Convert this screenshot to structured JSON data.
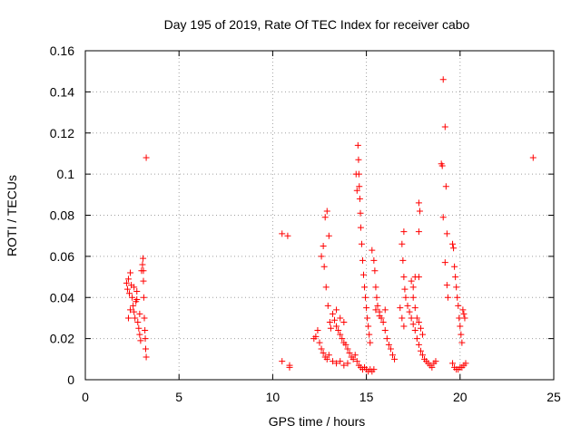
{
  "chart_data": {
    "type": "scatter",
    "title": "Day 195 of 2019, Rate Of TEC Index for receiver cabo",
    "xlabel": "GPS time / hours",
    "ylabel": "ROTI / TECUs",
    "xlim": [
      0,
      25
    ],
    "ylim": [
      0,
      0.16
    ],
    "grid": true,
    "marker": "+",
    "color": "#ff0000",
    "xticks": [
      {
        "value": 0,
        "label": "0"
      },
      {
        "value": 5,
        "label": "5"
      },
      {
        "value": 10,
        "label": "10"
      },
      {
        "value": 15,
        "label": "15"
      },
      {
        "value": 20,
        "label": "20"
      },
      {
        "value": 25,
        "label": "25"
      }
    ],
    "yticks": [
      {
        "value": 0,
        "label": "0"
      },
      {
        "value": 0.02,
        "label": "0.02"
      },
      {
        "value": 0.04,
        "label": "0.04"
      },
      {
        "value": 0.06,
        "label": "0.06"
      },
      {
        "value": 0.08,
        "label": "0.08"
      },
      {
        "value": 0.1,
        "label": "0.1"
      },
      {
        "value": 0.12,
        "label": "0.12"
      },
      {
        "value": 0.14,
        "label": "0.14"
      },
      {
        "value": 0.16,
        "label": "0.16"
      }
    ],
    "series": [
      {
        "name": "ROTI",
        "points": [
          [
            2.2,
            0.047
          ],
          [
            2.25,
            0.044
          ],
          [
            2.3,
            0.049
          ],
          [
            2.35,
            0.042
          ],
          [
            2.4,
            0.052
          ],
          [
            2.45,
            0.046
          ],
          [
            2.5,
            0.04
          ],
          [
            2.55,
            0.036
          ],
          [
            2.6,
            0.033
          ],
          [
            2.65,
            0.03
          ],
          [
            2.7,
            0.038
          ],
          [
            2.75,
            0.043
          ],
          [
            2.8,
            0.028
          ],
          [
            2.85,
            0.025
          ],
          [
            2.9,
            0.022
          ],
          [
            2.95,
            0.019
          ],
          [
            3.0,
            0.053
          ],
          [
            3.05,
            0.056
          ],
          [
            3.08,
            0.059
          ],
          [
            3.1,
            0.048
          ],
          [
            3.12,
            0.04
          ],
          [
            3.15,
            0.03
          ],
          [
            3.18,
            0.024
          ],
          [
            3.2,
            0.02
          ],
          [
            3.22,
            0.015
          ],
          [
            3.25,
            0.011
          ],
          [
            3.25,
            0.108
          ],
          [
            2.3,
            0.03
          ],
          [
            2.4,
            0.034
          ],
          [
            2.6,
            0.045
          ],
          [
            2.75,
            0.039
          ],
          [
            2.9,
            0.032
          ],
          [
            3.1,
            0.053
          ],
          [
            10.5,
            0.071
          ],
          [
            10.8,
            0.07
          ],
          [
            10.5,
            0.009
          ],
          [
            10.9,
            0.006
          ],
          [
            10.9,
            0.007
          ],
          [
            12.2,
            0.02
          ],
          [
            12.3,
            0.021
          ],
          [
            12.4,
            0.024
          ],
          [
            12.5,
            0.018
          ],
          [
            12.6,
            0.015
          ],
          [
            12.7,
            0.013
          ],
          [
            12.8,
            0.011
          ],
          [
            12.9,
            0.01
          ],
          [
            13.0,
            0.012
          ],
          [
            12.6,
            0.06
          ],
          [
            12.7,
            0.065
          ],
          [
            12.8,
            0.079
          ],
          [
            12.9,
            0.082
          ],
          [
            13.0,
            0.07
          ],
          [
            12.75,
            0.055
          ],
          [
            12.85,
            0.045
          ],
          [
            12.95,
            0.036
          ],
          [
            13.05,
            0.028
          ],
          [
            13.1,
            0.025
          ],
          [
            13.2,
            0.032
          ],
          [
            13.3,
            0.029
          ],
          [
            13.4,
            0.026
          ],
          [
            13.5,
            0.024
          ],
          [
            13.6,
            0.022
          ],
          [
            13.7,
            0.02
          ],
          [
            13.8,
            0.018
          ],
          [
            13.9,
            0.017
          ],
          [
            13.4,
            0.034
          ],
          [
            13.6,
            0.03
          ],
          [
            13.8,
            0.028
          ],
          [
            13.2,
            0.009
          ],
          [
            13.4,
            0.008
          ],
          [
            13.6,
            0.009
          ],
          [
            13.8,
            0.007
          ],
          [
            14.0,
            0.008
          ],
          [
            14.0,
            0.015
          ],
          [
            14.1,
            0.013
          ],
          [
            14.2,
            0.011
          ],
          [
            14.3,
            0.01
          ],
          [
            14.4,
            0.012
          ],
          [
            14.5,
            0.009
          ],
          [
            14.6,
            0.007
          ],
          [
            14.7,
            0.006
          ],
          [
            14.8,
            0.005
          ],
          [
            14.9,
            0.006
          ],
          [
            15.0,
            0.005
          ],
          [
            15.1,
            0.004
          ],
          [
            15.2,
            0.005
          ],
          [
            15.3,
            0.004
          ],
          [
            15.4,
            0.005
          ],
          [
            14.55,
            0.114
          ],
          [
            14.58,
            0.107
          ],
          [
            14.6,
            0.1
          ],
          [
            14.62,
            0.094
          ],
          [
            14.65,
            0.088
          ],
          [
            14.68,
            0.081
          ],
          [
            14.7,
            0.074
          ],
          [
            14.75,
            0.066
          ],
          [
            14.8,
            0.058
          ],
          [
            14.85,
            0.051
          ],
          [
            14.9,
            0.045
          ],
          [
            14.95,
            0.04
          ],
          [
            15.0,
            0.035
          ],
          [
            15.05,
            0.03
          ],
          [
            15.1,
            0.026
          ],
          [
            15.15,
            0.022
          ],
          [
            15.2,
            0.018
          ],
          [
            14.45,
            0.1
          ],
          [
            14.5,
            0.092
          ],
          [
            15.3,
            0.063
          ],
          [
            15.4,
            0.058
          ],
          [
            15.45,
            0.053
          ],
          [
            15.5,
            0.045
          ],
          [
            15.55,
            0.04
          ],
          [
            15.6,
            0.036
          ],
          [
            15.7,
            0.033
          ],
          [
            15.8,
            0.03
          ],
          [
            15.9,
            0.028
          ],
          [
            16.0,
            0.024
          ],
          [
            16.1,
            0.02
          ],
          [
            16.2,
            0.017
          ],
          [
            16.3,
            0.015
          ],
          [
            16.4,
            0.012
          ],
          [
            16.5,
            0.01
          ],
          [
            15.5,
            0.034
          ],
          [
            15.7,
            0.031
          ],
          [
            16.0,
            0.034
          ],
          [
            16.9,
            0.066
          ],
          [
            17.0,
            0.072
          ],
          [
            16.95,
            0.058
          ],
          [
            17.0,
            0.05
          ],
          [
            17.05,
            0.044
          ],
          [
            17.1,
            0.04
          ],
          [
            17.2,
            0.036
          ],
          [
            17.3,
            0.033
          ],
          [
            17.4,
            0.03
          ],
          [
            17.5,
            0.027
          ],
          [
            17.6,
            0.024
          ],
          [
            17.7,
            0.02
          ],
          [
            17.8,
            0.017
          ],
          [
            17.9,
            0.014
          ],
          [
            18.0,
            0.012
          ],
          [
            18.1,
            0.01
          ],
          [
            18.2,
            0.009
          ],
          [
            18.3,
            0.008
          ],
          [
            18.4,
            0.007
          ],
          [
            18.5,
            0.006
          ],
          [
            18.6,
            0.008
          ],
          [
            18.7,
            0.009
          ],
          [
            17.4,
            0.048
          ],
          [
            17.5,
            0.04
          ],
          [
            17.6,
            0.035
          ],
          [
            17.7,
            0.03
          ],
          [
            17.8,
            0.028
          ],
          [
            17.9,
            0.025
          ],
          [
            18.0,
            0.022
          ],
          [
            17.5,
            0.045
          ],
          [
            17.6,
            0.05
          ],
          [
            17.8,
            0.086
          ],
          [
            17.85,
            0.082
          ],
          [
            17.8,
            0.072
          ],
          [
            17.8,
            0.05
          ],
          [
            16.8,
            0.035
          ],
          [
            16.9,
            0.03
          ],
          [
            17.0,
            0.026
          ],
          [
            19.1,
            0.146
          ],
          [
            19.2,
            0.123
          ],
          [
            19.25,
            0.094
          ],
          [
            19.0,
            0.105
          ],
          [
            19.05,
            0.104
          ],
          [
            19.1,
            0.079
          ],
          [
            19.3,
            0.071
          ],
          [
            19.2,
            0.057
          ],
          [
            19.3,
            0.046
          ],
          [
            19.35,
            0.04
          ],
          [
            19.6,
            0.066
          ],
          [
            19.65,
            0.064
          ],
          [
            19.7,
            0.055
          ],
          [
            19.75,
            0.05
          ],
          [
            19.8,
            0.045
          ],
          [
            19.85,
            0.04
          ],
          [
            19.9,
            0.036
          ],
          [
            19.95,
            0.03
          ],
          [
            20.0,
            0.026
          ],
          [
            20.05,
            0.022
          ],
          [
            20.1,
            0.018
          ],
          [
            20.15,
            0.034
          ],
          [
            20.2,
            0.032
          ],
          [
            20.25,
            0.03
          ],
          [
            19.6,
            0.008
          ],
          [
            19.7,
            0.006
          ],
          [
            19.8,
            0.005
          ],
          [
            19.9,
            0.005
          ],
          [
            20.0,
            0.006
          ],
          [
            20.1,
            0.006
          ],
          [
            20.2,
            0.007
          ],
          [
            20.3,
            0.008
          ],
          [
            23.9,
            0.108
          ]
        ]
      }
    ]
  }
}
